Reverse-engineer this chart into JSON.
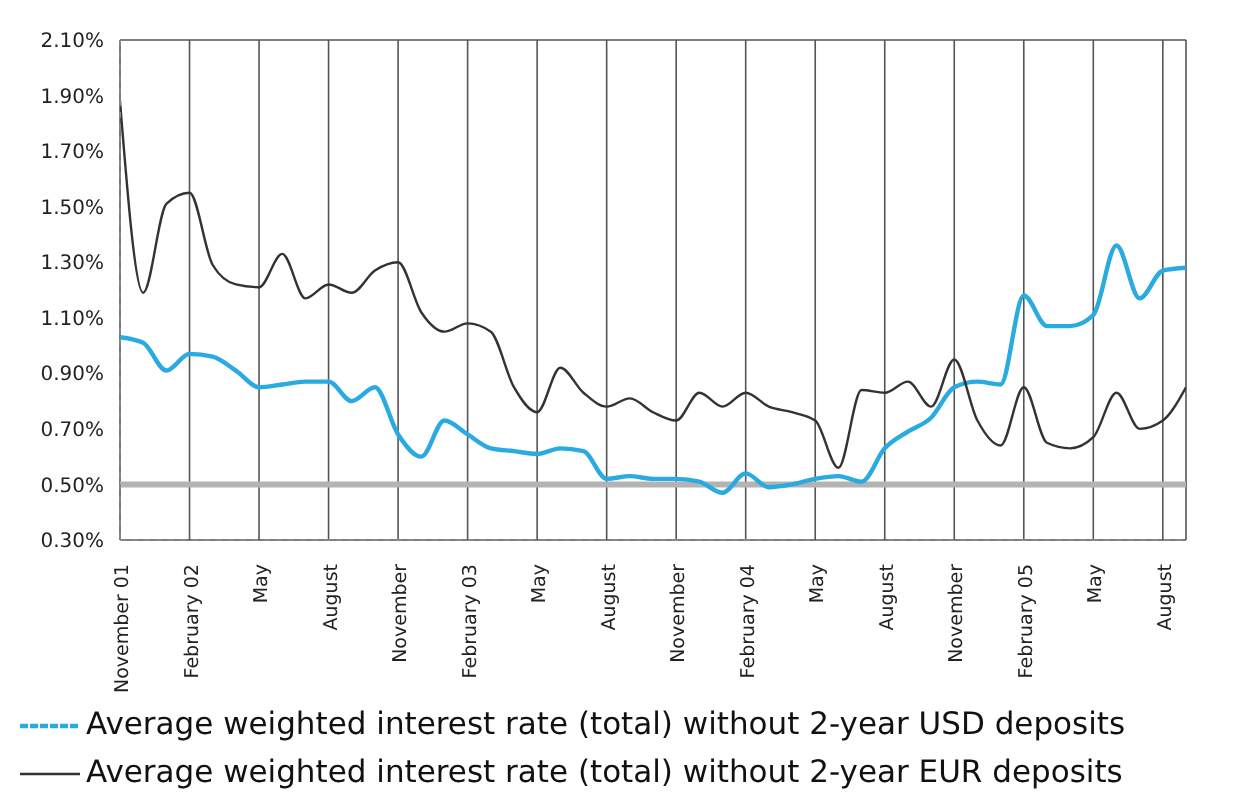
{
  "chart_data": {
    "type": "line",
    "categories": [
      "November 01",
      null,
      null,
      "February 02",
      null,
      null,
      "May",
      null,
      null,
      "August",
      null,
      null,
      "November",
      null,
      null,
      "February 03",
      null,
      null,
      "May",
      null,
      null,
      "August",
      null,
      null,
      "November",
      null,
      null,
      "February 04",
      null,
      null,
      "May",
      null,
      null,
      "August",
      null,
      null,
      "November",
      null,
      null,
      "February 05",
      null,
      null,
      "May",
      null,
      null,
      "August",
      null
    ],
    "series": [
      {
        "name": "Average weighted interest rate (total) without 2-year USD deposits",
        "color": "#29abe2",
        "values": [
          1.03,
          1.01,
          0.91,
          0.97,
          0.96,
          0.91,
          0.85,
          0.86,
          0.87,
          0.87,
          0.8,
          0.85,
          0.68,
          0.6,
          0.73,
          0.68,
          0.63,
          0.62,
          0.61,
          0.63,
          0.62,
          0.52,
          0.53,
          0.52,
          0.52,
          0.51,
          0.47,
          0.54,
          0.49,
          0.5,
          0.52,
          0.53,
          0.51,
          0.63,
          0.69,
          0.74,
          0.85,
          0.87,
          0.86,
          1.18,
          1.07,
          1.07,
          1.11,
          1.36,
          1.17,
          1.27,
          1.28
        ]
      },
      {
        "name": "Average weighted interest rate (total) without 2-year EUR deposits",
        "color": "#333333",
        "values": [
          1.88,
          1.19,
          1.51,
          1.55,
          1.29,
          1.22,
          1.21,
          1.33,
          1.17,
          1.22,
          1.19,
          1.27,
          1.3,
          1.12,
          1.05,
          1.08,
          1.05,
          0.85,
          0.76,
          0.92,
          0.83,
          0.78,
          0.81,
          0.76,
          0.73,
          0.83,
          0.78,
          0.83,
          0.78,
          0.76,
          0.73,
          0.56,
          0.84,
          0.83,
          0.87,
          0.78,
          0.95,
          0.73,
          0.64,
          0.85,
          0.65,
          0.63,
          0.67,
          0.83,
          0.7,
          0.73,
          0.85
        ]
      }
    ],
    "ylim": [
      0.3,
      2.1
    ],
    "yticks": [
      {
        "value": 0.3,
        "label": "0.30%"
      },
      {
        "value": 0.5,
        "label": "0.50%"
      },
      {
        "value": 0.7,
        "label": "0.70%"
      },
      {
        "value": 0.9,
        "label": "0.90%"
      },
      {
        "value": 1.1,
        "label": "1.10%"
      },
      {
        "value": 1.3,
        "label": "1.30%"
      },
      {
        "value": 1.5,
        "label": "1.50%"
      },
      {
        "value": 1.7,
        "label": "1.70%"
      },
      {
        "value": 1.9,
        "label": "1.90%"
      },
      {
        "value": 2.1,
        "label": "2.10%"
      }
    ],
    "ref_lines": [
      {
        "axis": "y",
        "value": 0.5,
        "color": "#b3b3b3"
      }
    ],
    "grid": true,
    "legend": "bottom",
    "marker": "none",
    "line_style": "solid"
  }
}
